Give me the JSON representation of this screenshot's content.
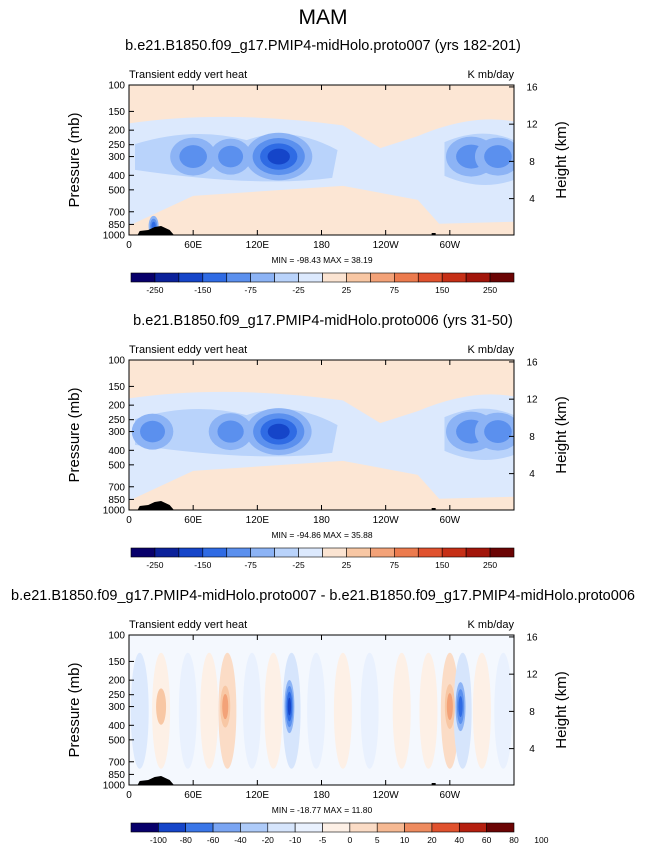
{
  "figure": {
    "title": "MAM"
  },
  "chart_data": [
    {
      "type": "heatmap",
      "title": "b.e21.B1850.f09_g17.PMIP4-midHolo.proto007 (yrs 182-201)",
      "left_label": "Transient eddy vert heat",
      "units": "K mb/day",
      "ylabel": "Pressure (mb)",
      "ylabel_right": "Height (km)",
      "xlabel": "",
      "x_ticks": [
        "0",
        "60E",
        "120E",
        "180",
        "120W",
        "60W"
      ],
      "x_tick_values": [
        0,
        60,
        120,
        180,
        240,
        300
      ],
      "xlim": [
        0,
        360
      ],
      "y_ticks": [
        "100",
        "150",
        "200",
        "250",
        "300",
        "400",
        "500",
        "700",
        "850",
        "1000"
      ],
      "y_tick_values": [
        100,
        150,
        200,
        250,
        300,
        400,
        500,
        700,
        850,
        1000
      ],
      "ylim": [
        1000,
        100
      ],
      "y_scale": "log",
      "height_ticks": [
        "4",
        "8",
        "12",
        "16"
      ],
      "height_tick_values": [
        4,
        8,
        12,
        16
      ],
      "min_max": "MIN = -98.43  MAX =  38.19",
      "colorbar_levels": [
        "-250",
        "-150",
        "-75",
        "-25",
        "25",
        "75",
        "150",
        "250"
      ],
      "features": [
        {
          "lon": 60,
          "p": 300,
          "value": -50
        },
        {
          "lon": 95,
          "p": 300,
          "value": -40
        },
        {
          "lon": 140,
          "p": 300,
          "value": -98
        },
        {
          "lon": 320,
          "p": 300,
          "value": -60
        },
        {
          "lon": 345,
          "p": 300,
          "value": -50
        },
        {
          "lon": 23,
          "p": 870,
          "value": -75
        }
      ]
    },
    {
      "type": "heatmap",
      "title": "b.e21.B1850.f09_g17.PMIP4-midHolo.proto006 (yrs 31-50)",
      "left_label": "Transient eddy vert heat",
      "units": "K mb/day",
      "ylabel": "Pressure (mb)",
      "ylabel_right": "Height (km)",
      "xlabel": "",
      "x_ticks": [
        "0",
        "60E",
        "120E",
        "180",
        "120W",
        "60W"
      ],
      "x_tick_values": [
        0,
        60,
        120,
        180,
        240,
        300
      ],
      "xlim": [
        0,
        360
      ],
      "y_ticks": [
        "100",
        "150",
        "200",
        "250",
        "300",
        "400",
        "500",
        "700",
        "850",
        "1000"
      ],
      "y_tick_values": [
        100,
        150,
        200,
        250,
        300,
        400,
        500,
        700,
        850,
        1000
      ],
      "ylim": [
        1000,
        100
      ],
      "y_scale": "log",
      "height_ticks": [
        "4",
        "8",
        "12",
        "16"
      ],
      "height_tick_values": [
        4,
        8,
        12,
        16
      ],
      "min_max": "MIN = -94.86  MAX =  35.88",
      "colorbar_levels": [
        "-250",
        "-150",
        "-75",
        "-25",
        "25",
        "75",
        "150",
        "250"
      ],
      "features": [
        {
          "lon": 22,
          "p": 300,
          "value": -40
        },
        {
          "lon": 95,
          "p": 300,
          "value": -45
        },
        {
          "lon": 140,
          "p": 300,
          "value": -95
        },
        {
          "lon": 320,
          "p": 300,
          "value": -60
        },
        {
          "lon": 345,
          "p": 300,
          "value": -50
        }
      ]
    },
    {
      "type": "heatmap",
      "title": "b.e21.B1850.f09_g17.PMIP4-midHolo.proto007 - b.e21.B1850.f09_g17.PMIP4-midHolo.proto006",
      "left_label": "Transient eddy vert heat",
      "units": "K mb/day",
      "ylabel": "Pressure (mb)",
      "ylabel_right": "Height (km)",
      "xlabel": "",
      "x_ticks": [
        "0",
        "60E",
        "120E",
        "180",
        "120W",
        "60W"
      ],
      "x_tick_values": [
        0,
        60,
        120,
        180,
        240,
        300
      ],
      "xlim": [
        0,
        360
      ],
      "y_ticks": [
        "100",
        "150",
        "200",
        "250",
        "300",
        "400",
        "500",
        "700",
        "850",
        "1000"
      ],
      "y_tick_values": [
        100,
        150,
        200,
        250,
        300,
        400,
        500,
        700,
        850,
        1000
      ],
      "ylim": [
        1000,
        100
      ],
      "y_scale": "log",
      "height_ticks": [
        "4",
        "8",
        "12",
        "16"
      ],
      "height_tick_values": [
        4,
        8,
        12,
        16
      ],
      "min_max": "MIN = -18.77  MAX =  11.80",
      "colorbar_levels": [
        "-100",
        "-80",
        "-60",
        "-40",
        "-20",
        "-10",
        "-5",
        "0",
        "5",
        "10",
        "20",
        "40",
        "60",
        "80",
        "100"
      ],
      "features": [
        {
          "lon": 30,
          "p": 300,
          "value": 6
        },
        {
          "lon": 90,
          "p": 300,
          "value": 10
        },
        {
          "lon": 150,
          "p": 300,
          "value": -18
        },
        {
          "lon": 300,
          "p": 300,
          "value": 12
        },
        {
          "lon": 310,
          "p": 300,
          "value": -15
        }
      ]
    }
  ],
  "colors": {
    "colorbar_16": [
      "#08006b",
      "#0b219a",
      "#1545c9",
      "#2f6be4",
      "#5b90ee",
      "#8cb3f5",
      "#b9d3fb",
      "#dce9fd",
      "#fbe4d2",
      "#f8c7a4",
      "#f3a278",
      "#ec7b4e",
      "#e0522e",
      "#c62f16",
      "#a2150a",
      "#6b0404"
    ],
    "colorbar_14": [
      "#08006b",
      "#1545c9",
      "#3a76e8",
      "#7aa5f3",
      "#aecbf9",
      "#d6e5fc",
      "#e9f1fe",
      "#fdf0e6",
      "#fbdcc6",
      "#f6b993",
      "#ee8b5f",
      "#e0522e",
      "#b51f0f",
      "#6b0404"
    ],
    "panel_background": "#fce6d4"
  }
}
